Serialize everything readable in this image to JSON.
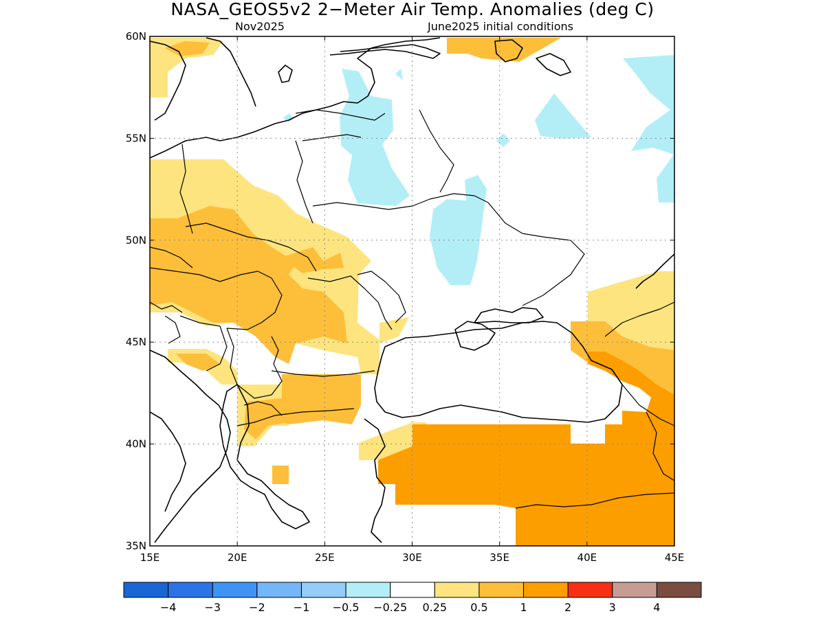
{
  "header": {
    "title": "NASA_GEOS5v2 2−Meter Air Temp. Anomalies (deg C)",
    "valid_month": "Nov2025",
    "init": "June2025 initial conditions"
  },
  "map": {
    "lon_range": [
      15,
      45
    ],
    "lat_range": [
      35,
      60
    ],
    "lon_ticks": [
      {
        "value": 15,
        "label": "15E"
      },
      {
        "value": 20,
        "label": "20E"
      },
      {
        "value": 25,
        "label": "25E"
      },
      {
        "value": 30,
        "label": "30E"
      },
      {
        "value": 35,
        "label": "35E"
      },
      {
        "value": 40,
        "label": "40E"
      },
      {
        "value": 45,
        "label": "45E"
      }
    ],
    "lat_ticks": [
      {
        "value": 60,
        "label": "60N"
      },
      {
        "value": 55,
        "label": "55N"
      },
      {
        "value": 50,
        "label": "50N"
      },
      {
        "value": 45,
        "label": "45N"
      },
      {
        "value": 40,
        "label": "40N"
      },
      {
        "value": 35,
        "label": "35N"
      }
    ],
    "grid": "dotted"
  },
  "colorbar": {
    "colors": [
      "#1a66d4",
      "#2b74e6",
      "#3f93f5",
      "#74b6f8",
      "#93cdf8",
      "#b3eef7",
      "#ffffff",
      "#fde47f",
      "#fdbe3a",
      "#fd9e00",
      "#f82f14",
      "#c69c94",
      "#7a4d42"
    ],
    "labels": [
      "−4",
      "−3",
      "−2",
      "−1",
      "−0.5",
      "−0.25",
      "0.25",
      "0.5",
      "1",
      "2",
      "3",
      "4"
    ]
  },
  "anomaly_colors": {
    "cool_025": "#b3eef7",
    "warm_025": "#fde47f",
    "warm_05": "#fdbe3a",
    "warm_1": "#fd9e00"
  }
}
